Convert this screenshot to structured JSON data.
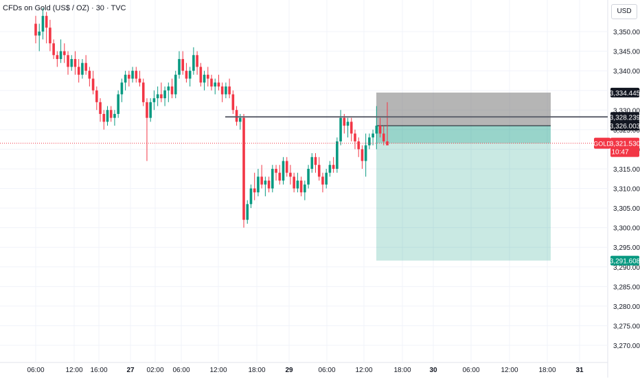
{
  "chart_data": {
    "type": "candlestick",
    "title": "CFDs on Gold (US$ / OZ) · 30 · TVC",
    "currency_button": "USD",
    "symbol": "GOLD",
    "last_price": "3,321.530",
    "countdown": "10:47",
    "grid": true,
    "ylim": [
      3267,
      3358
    ],
    "price_ticks": [
      "3,350.000",
      "3,345.000",
      "3,340.000",
      "3,335.000",
      "3,330.000",
      "3,325.000",
      "3,320.000",
      "3,315.000",
      "3,310.000",
      "3,305.000",
      "3,300.000",
      "3,295.000",
      "3,290.000",
      "3,285.000",
      "3,280.000",
      "3,275.000",
      "3,270.000"
    ],
    "time_ticks": [
      "06:00",
      "12:00",
      "16:00",
      "27",
      "02:00",
      "06:00",
      "12:00",
      "18:00",
      "29",
      "06:00",
      "12:00",
      "18:00",
      "30",
      "06:00",
      "12:00",
      "18:00",
      "31"
    ],
    "horizontal_line": 3328.239,
    "position": {
      "type": "long",
      "stop": 3334.445,
      "entry": 3326.003,
      "target": 3291.608,
      "current": 3321.53
    },
    "price_labels": [
      {
        "label": "3,334.445",
        "value": 3334.445,
        "style": "dark"
      },
      {
        "label": "3,328.239",
        "value": 3328.239,
        "style": "dark"
      },
      {
        "label": "3,326.003",
        "value": 3326.003,
        "style": "dark"
      },
      {
        "label": "3,291.608",
        "value": 3291.608,
        "style": "green"
      }
    ],
    "candles": [
      [
        3352,
        3354,
        3347,
        3349
      ],
      [
        3349,
        3352,
        3345,
        3350
      ],
      [
        3350,
        3356,
        3348,
        3354
      ],
      [
        3354,
        3355,
        3347,
        3351
      ],
      [
        3351,
        3353,
        3345,
        3347
      ],
      [
        3347,
        3348,
        3343,
        3344
      ],
      [
        3344,
        3345,
        3341,
        3343
      ],
      [
        3343,
        3348,
        3342,
        3345
      ],
      [
        3345,
        3347,
        3342,
        3344
      ],
      [
        3344,
        3345,
        3339,
        3341
      ],
      [
        3341,
        3344,
        3340,
        3343
      ],
      [
        3343,
        3345,
        3339,
        3341
      ],
      [
        3341,
        3343,
        3337,
        3339
      ],
      [
        3339,
        3343,
        3338,
        3342
      ],
      [
        3342,
        3344,
        3339,
        3340
      ],
      [
        3340,
        3341,
        3336,
        3338
      ],
      [
        3338,
        3340,
        3334,
        3335
      ],
      [
        3335,
        3336,
        3330,
        3332
      ],
      [
        3332,
        3333,
        3327,
        3329
      ],
      [
        3329,
        3330,
        3325,
        3327
      ],
      [
        3327,
        3331,
        3326,
        3330
      ],
      [
        3330,
        3331,
        3327,
        3328
      ],
      [
        3328,
        3330,
        3326,
        3329
      ],
      [
        3329,
        3335,
        3328,
        3334
      ],
      [
        3334,
        3338,
        3332,
        3337
      ],
      [
        3337,
        3340,
        3335,
        3339
      ],
      [
        3339,
        3340,
        3336,
        3338
      ],
      [
        3338,
        3341,
        3337,
        3340
      ],
      [
        3340,
        3341,
        3337,
        3338
      ],
      [
        3338,
        3340,
        3336,
        3337
      ],
      [
        3337,
        3338,
        3331,
        3332
      ],
      [
        3332,
        3333,
        3317,
        3328
      ],
      [
        3328,
        3333,
        3327,
        3332
      ],
      [
        3332,
        3335,
        3330,
        3333
      ],
      [
        3333,
        3336,
        3331,
        3334
      ],
      [
        3334,
        3337,
        3332,
        3333
      ],
      [
        3333,
        3336,
        3331,
        3335
      ],
      [
        3335,
        3337,
        3332,
        3336
      ],
      [
        3336,
        3338,
        3333,
        3334
      ],
      [
        3334,
        3340,
        3333,
        3339
      ],
      [
        3339,
        3345,
        3338,
        3343
      ],
      [
        3343,
        3345,
        3339,
        3340
      ],
      [
        3340,
        3342,
        3337,
        3338
      ],
      [
        3338,
        3341,
        3336,
        3340
      ],
      [
        3340,
        3346,
        3339,
        3344
      ],
      [
        3344,
        3345,
        3339,
        3341
      ],
      [
        3341,
        3342,
        3336,
        3337
      ],
      [
        3337,
        3340,
        3335,
        3339
      ],
      [
        3339,
        3341,
        3336,
        3338
      ],
      [
        3338,
        3339,
        3335,
        3336
      ],
      [
        3336,
        3338,
        3334,
        3337
      ],
      [
        3337,
        3339,
        3335,
        3336
      ],
      [
        3336,
        3337,
        3332,
        3334
      ],
      [
        3334,
        3337,
        3333,
        3336
      ],
      [
        3336,
        3338,
        3333,
        3334
      ],
      [
        3334,
        3335,
        3329,
        3330
      ],
      [
        3330,
        3331,
        3326,
        3327
      ],
      [
        3327,
        3329,
        3325,
        3328
      ],
      [
        3328,
        3329,
        3300,
        3302
      ],
      [
        3302,
        3307,
        3301,
        3306
      ],
      [
        3306,
        3311,
        3305,
        3310
      ],
      [
        3310,
        3314,
        3307,
        3309
      ],
      [
        3309,
        3315,
        3308,
        3313
      ],
      [
        3313,
        3316,
        3310,
        3311
      ],
      [
        3311,
        3313,
        3308,
        3312
      ],
      [
        3312,
        3313,
        3309,
        3310
      ],
      [
        3310,
        3316,
        3309,
        3315
      ],
      [
        3315,
        3316,
        3312,
        3314
      ],
      [
        3314,
        3316,
        3311,
        3312
      ],
      [
        3312,
        3318,
        3311,
        3317
      ],
      [
        3317,
        3318,
        3313,
        3314
      ],
      [
        3314,
        3316,
        3311,
        3313
      ],
      [
        3313,
        3314,
        3309,
        3310
      ],
      [
        3310,
        3314,
        3309,
        3312
      ],
      [
        3312,
        3313,
        3308,
        3309
      ],
      [
        3309,
        3312,
        3307,
        3311
      ],
      [
        3311,
        3316,
        3310,
        3315
      ],
      [
        3315,
        3319,
        3314,
        3318
      ],
      [
        3318,
        3319,
        3314,
        3316
      ],
      [
        3316,
        3318,
        3312,
        3313
      ],
      [
        3313,
        3314,
        3309,
        3311
      ],
      [
        3311,
        3315,
        3310,
        3314
      ],
      [
        3314,
        3317,
        3313,
        3316
      ],
      [
        3316,
        3318,
        3314,
        3315
      ],
      [
        3315,
        3323,
        3314,
        3322
      ],
      [
        3322,
        3330,
        3321,
        3328
      ],
      [
        3328,
        3329,
        3324,
        3326
      ],
      [
        3326,
        3328,
        3323,
        3327
      ],
      [
        3327,
        3328,
        3322,
        3324
      ],
      [
        3324,
        3325,
        3320,
        3322
      ],
      [
        3322,
        3323,
        3318,
        3320
      ],
      [
        3320,
        3321,
        3315,
        3317
      ],
      [
        3317,
        3324,
        3313,
        3321
      ],
      [
        3321,
        3324,
        3320,
        3323
      ],
      [
        3323,
        3325,
        3321,
        3324
      ],
      [
        3324,
        3331,
        3320,
        3326
      ],
      [
        3326,
        3328,
        3323,
        3324
      ],
      [
        3324,
        3326,
        3321,
        3322
      ],
      [
        3322,
        3332,
        3321,
        3321
      ]
    ]
  }
}
